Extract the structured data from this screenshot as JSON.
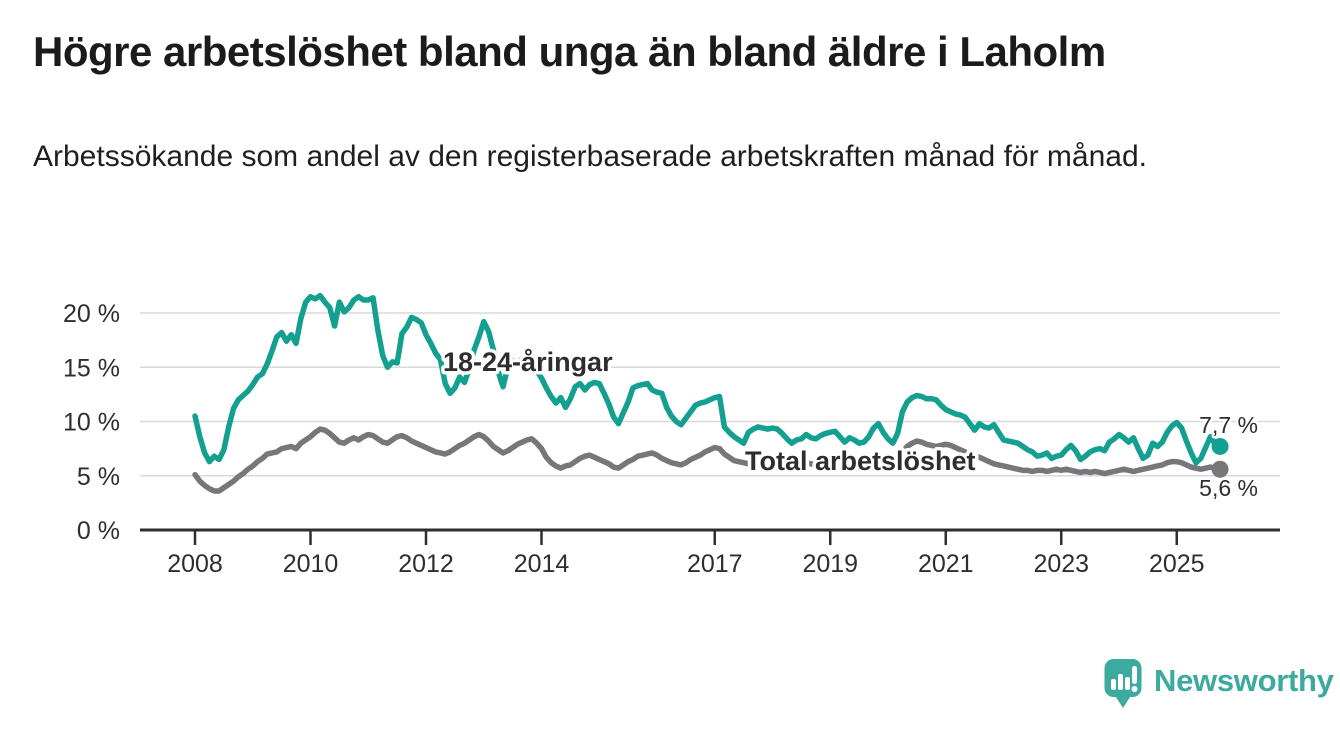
{
  "header": {
    "title": "Högre arbetslöshet bland unga än bland äldre i Laholm",
    "subtitle": "Arbetssökande som andel av den registerbaserade arbetskraften månad för månad."
  },
  "chart_data": {
    "type": "line",
    "title": "Högre arbetslöshet bland unga än bland äldre i Laholm",
    "subtitle": "Arbetssökande som andel av den registerbaserade arbetskraften månad för månad.",
    "x_start": "2008-01",
    "x_freq": "monthly",
    "x_ticks": [
      2008,
      2010,
      2012,
      2014,
      2017,
      2019,
      2021,
      2023,
      2025
    ],
    "y_ticks": [
      0,
      5,
      10,
      15,
      20
    ],
    "y_tick_suffix": " %",
    "ylim": [
      0,
      22.5
    ],
    "grid": "horizontal",
    "legend_position": "inline-labels",
    "colors": {
      "grid": "#d8d8d8",
      "axis": "#2e2e2e",
      "text": "#2e2e2e"
    },
    "series": [
      {
        "name": "18-24-åringar",
        "color": "#14a090",
        "end_label": "7,7 %",
        "end_value": 7.7,
        "values": [
          10.5,
          8.6,
          7.1,
          6.3,
          6.8,
          6.5,
          7.4,
          9.5,
          11.2,
          12.0,
          12.4,
          12.8,
          13.4,
          14.1,
          14.4,
          15.3,
          16.5,
          17.8,
          18.2,
          17.4,
          18.0,
          17.2,
          19.5,
          21.0,
          21.5,
          21.3,
          21.6,
          21.0,
          20.5,
          18.8,
          21.0,
          20.1,
          20.5,
          21.2,
          21.5,
          21.2,
          21.2,
          21.4,
          18.4,
          16.1,
          15.0,
          15.5,
          15.4,
          18.1,
          18.7,
          19.6,
          19.4,
          19.1,
          18.0,
          17.2,
          16.3,
          15.7,
          13.5,
          12.6,
          13.1,
          14.1,
          13.6,
          14.9,
          16.6,
          17.8,
          19.2,
          18.3,
          16.6,
          14.6,
          13.2,
          15.0,
          15.6,
          15.2,
          15.8,
          15.4,
          14.9,
          14.7,
          14.0,
          13.1,
          12.3,
          11.7,
          12.2,
          11.3,
          12.1,
          13.2,
          13.5,
          12.9,
          13.4,
          13.6,
          13.5,
          12.6,
          11.6,
          10.4,
          9.8,
          10.8,
          11.8,
          13.1,
          13.3,
          13.4,
          13.5,
          12.9,
          12.7,
          12.6,
          11.3,
          10.5,
          10.0,
          9.7,
          10.3,
          10.9,
          11.5,
          11.7,
          11.8,
          12.0,
          12.2,
          12.3,
          9.5,
          9.0,
          8.6,
          8.3,
          8.0,
          9.0,
          9.3,
          9.5,
          9.4,
          9.3,
          9.4,
          9.3,
          8.9,
          8.4,
          8.0,
          8.3,
          8.4,
          8.8,
          8.5,
          8.4,
          8.7,
          8.9,
          9.0,
          9.1,
          8.6,
          8.1,
          8.5,
          8.3,
          8.0,
          8.1,
          8.6,
          9.4,
          9.8,
          9.0,
          8.4,
          8.0,
          8.9,
          10.9,
          11.8,
          12.2,
          12.4,
          12.3,
          12.1,
          12.1,
          12.0,
          11.5,
          11.1,
          10.9,
          10.7,
          10.6,
          10.4,
          9.8,
          9.2,
          9.8,
          9.5,
          9.4,
          9.7,
          9.0,
          8.3,
          8.2,
          8.1,
          8.0,
          7.7,
          7.4,
          7.2,
          6.8,
          6.9,
          7.1,
          6.6,
          6.8,
          6.9,
          7.4,
          7.8,
          7.3,
          6.5,
          6.8,
          7.2,
          7.4,
          7.5,
          7.3,
          8.1,
          8.4,
          8.8,
          8.5,
          8.1,
          8.5,
          7.5,
          6.6,
          6.9,
          8.0,
          7.7,
          8.1,
          9.0,
          9.6,
          9.9,
          9.4,
          8.2,
          7.1,
          6.2,
          6.6,
          7.6,
          8.6,
          7.9,
          7.7
        ]
      },
      {
        "name": "Total arbetslöshet",
        "color": "#77767b",
        "end_label": "5,6 %",
        "end_value": 5.6,
        "values": [
          5.1,
          4.5,
          4.1,
          3.8,
          3.6,
          3.6,
          3.9,
          4.2,
          4.5,
          4.9,
          5.2,
          5.6,
          5.9,
          6.3,
          6.6,
          7.0,
          7.1,
          7.2,
          7.5,
          7.6,
          7.7,
          7.5,
          8.0,
          8.3,
          8.6,
          9.0,
          9.3,
          9.2,
          8.9,
          8.5,
          8.1,
          8.0,
          8.3,
          8.5,
          8.3,
          8.6,
          8.8,
          8.7,
          8.4,
          8.1,
          8.0,
          8.3,
          8.6,
          8.7,
          8.5,
          8.2,
          8.0,
          7.8,
          7.6,
          7.4,
          7.2,
          7.1,
          7.0,
          7.2,
          7.5,
          7.8,
          8.0,
          8.3,
          8.6,
          8.8,
          8.6,
          8.2,
          7.7,
          7.4,
          7.1,
          7.3,
          7.6,
          7.9,
          8.1,
          8.3,
          8.4,
          8.0,
          7.5,
          6.7,
          6.2,
          5.9,
          5.7,
          5.9,
          6.0,
          6.3,
          6.6,
          6.8,
          6.9,
          6.7,
          6.5,
          6.3,
          6.1,
          5.8,
          5.7,
          6.0,
          6.3,
          6.5,
          6.8,
          6.9,
          7.0,
          7.1,
          6.9,
          6.6,
          6.4,
          6.2,
          6.1,
          6.0,
          6.2,
          6.5,
          6.7,
          6.9,
          7.2,
          7.4,
          7.6,
          7.5,
          7.0,
          6.7,
          6.4,
          6.3,
          6.2,
          6.1,
          6.2,
          6.3,
          6.4,
          6.5,
          6.4,
          6.3,
          6.2,
          6.0,
          5.9,
          6.0,
          6.1,
          6.2,
          6.1,
          6.0,
          6.1,
          6.2,
          6.2,
          6.3,
          6.1,
          6.0,
          5.9,
          6.0,
          6.1,
          6.2,
          6.1,
          6.2,
          6.3,
          6.3,
          6.2,
          6.1,
          6.5,
          7.2,
          7.7,
          8.0,
          8.2,
          8.1,
          7.9,
          7.8,
          7.7,
          7.8,
          7.9,
          7.8,
          7.6,
          7.4,
          7.2,
          7.0,
          6.8,
          6.7,
          6.5,
          6.3,
          6.1,
          6.0,
          5.9,
          5.8,
          5.7,
          5.6,
          5.5,
          5.5,
          5.4,
          5.5,
          5.5,
          5.4,
          5.5,
          5.6,
          5.5,
          5.6,
          5.5,
          5.4,
          5.3,
          5.4,
          5.3,
          5.4,
          5.3,
          5.2,
          5.3,
          5.4,
          5.5,
          5.6,
          5.5,
          5.4,
          5.5,
          5.6,
          5.7,
          5.8,
          5.9,
          6.0,
          6.2,
          6.3,
          6.3,
          6.2,
          6.0,
          5.8,
          5.7,
          5.6,
          5.7,
          5.8,
          5.7,
          5.6
        ]
      }
    ]
  },
  "footer": {
    "brand": "Newsworthy",
    "brand_color": "#3caa9e",
    "logo_icon": "bar-chart-speech-bubble-icon"
  }
}
